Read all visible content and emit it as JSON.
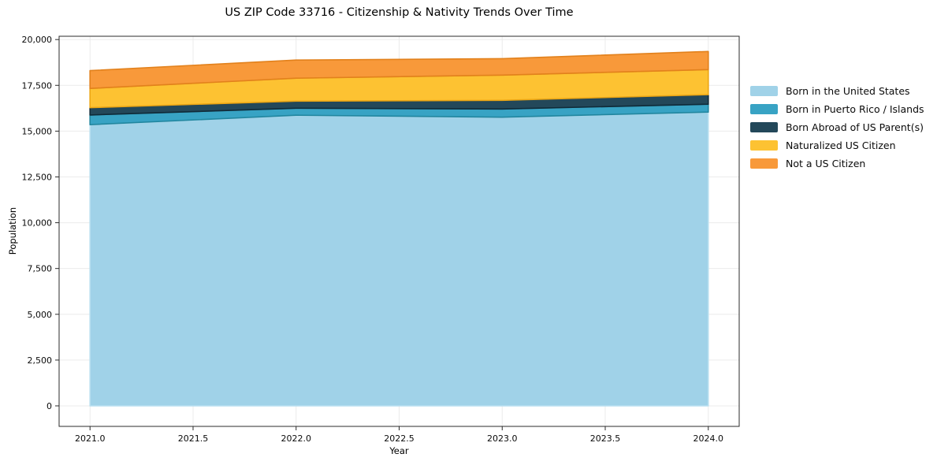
{
  "window": {
    "background": "#ffffff"
  },
  "chart_data": {
    "type": "area",
    "stacked": true,
    "title": "US ZIP Code 33716 - Citizenship & Nativity Trends Over Time",
    "xlabel": "Year",
    "ylabel": "Population",
    "x": [
      2021,
      2022,
      2023,
      2024
    ],
    "series": [
      {
        "name": "Born in the United States",
        "color": "#a0d2e8",
        "edge": "#b9e0f0",
        "values": [
          15350,
          15870,
          15760,
          16040
        ]
      },
      {
        "name": "Born in Puerto Rico / Islands",
        "color": "#38a3c4",
        "edge": "#21869f",
        "values": [
          530,
          380,
          450,
          430
        ]
      },
      {
        "name": "Born Abroad of US Parent(s)",
        "color": "#23485a",
        "edge": "#102b39",
        "values": [
          400,
          390,
          470,
          520
        ]
      },
      {
        "name": "Naturalized US Citizen",
        "color": "#fdc232",
        "edge": "#eca614",
        "values": [
          1050,
          1250,
          1380,
          1370
        ]
      },
      {
        "name": "Not a US Citizen",
        "color": "#f8993a",
        "edge": "#e2811c",
        "values": [
          975,
          990,
          900,
          990
        ]
      }
    ],
    "stack_totals": [
      18305,
      18880,
      18960,
      19350
    ],
    "x_ticks": [
      {
        "v": 2021.0,
        "label": "2021.0"
      },
      {
        "v": 2021.5,
        "label": "2021.5"
      },
      {
        "v": 2022.0,
        "label": "2022.0"
      },
      {
        "v": 2022.5,
        "label": "2022.5"
      },
      {
        "v": 2023.0,
        "label": "2023.0"
      },
      {
        "v": 2023.5,
        "label": "2023.5"
      },
      {
        "v": 2024.0,
        "label": "2024.0"
      }
    ],
    "y_ticks": [
      {
        "v": 0,
        "label": "0"
      },
      {
        "v": 2500,
        "label": "2,500"
      },
      {
        "v": 5000,
        "label": "5,000"
      },
      {
        "v": 7500,
        "label": "7,500"
      },
      {
        "v": 10000,
        "label": "10,000"
      },
      {
        "v": 12500,
        "label": "12,500"
      },
      {
        "v": 15000,
        "label": "15,000"
      },
      {
        "v": 17500,
        "label": "17,500"
      },
      {
        "v": 20000,
        "label": "20,000"
      }
    ],
    "xlim": [
      2020.85,
      2024.15
    ],
    "ylim": [
      -1120,
      20180
    ],
    "grid": true,
    "grid_color": "#ebebeb",
    "spine_color": "#2b2b2b",
    "legend_position": "right"
  }
}
